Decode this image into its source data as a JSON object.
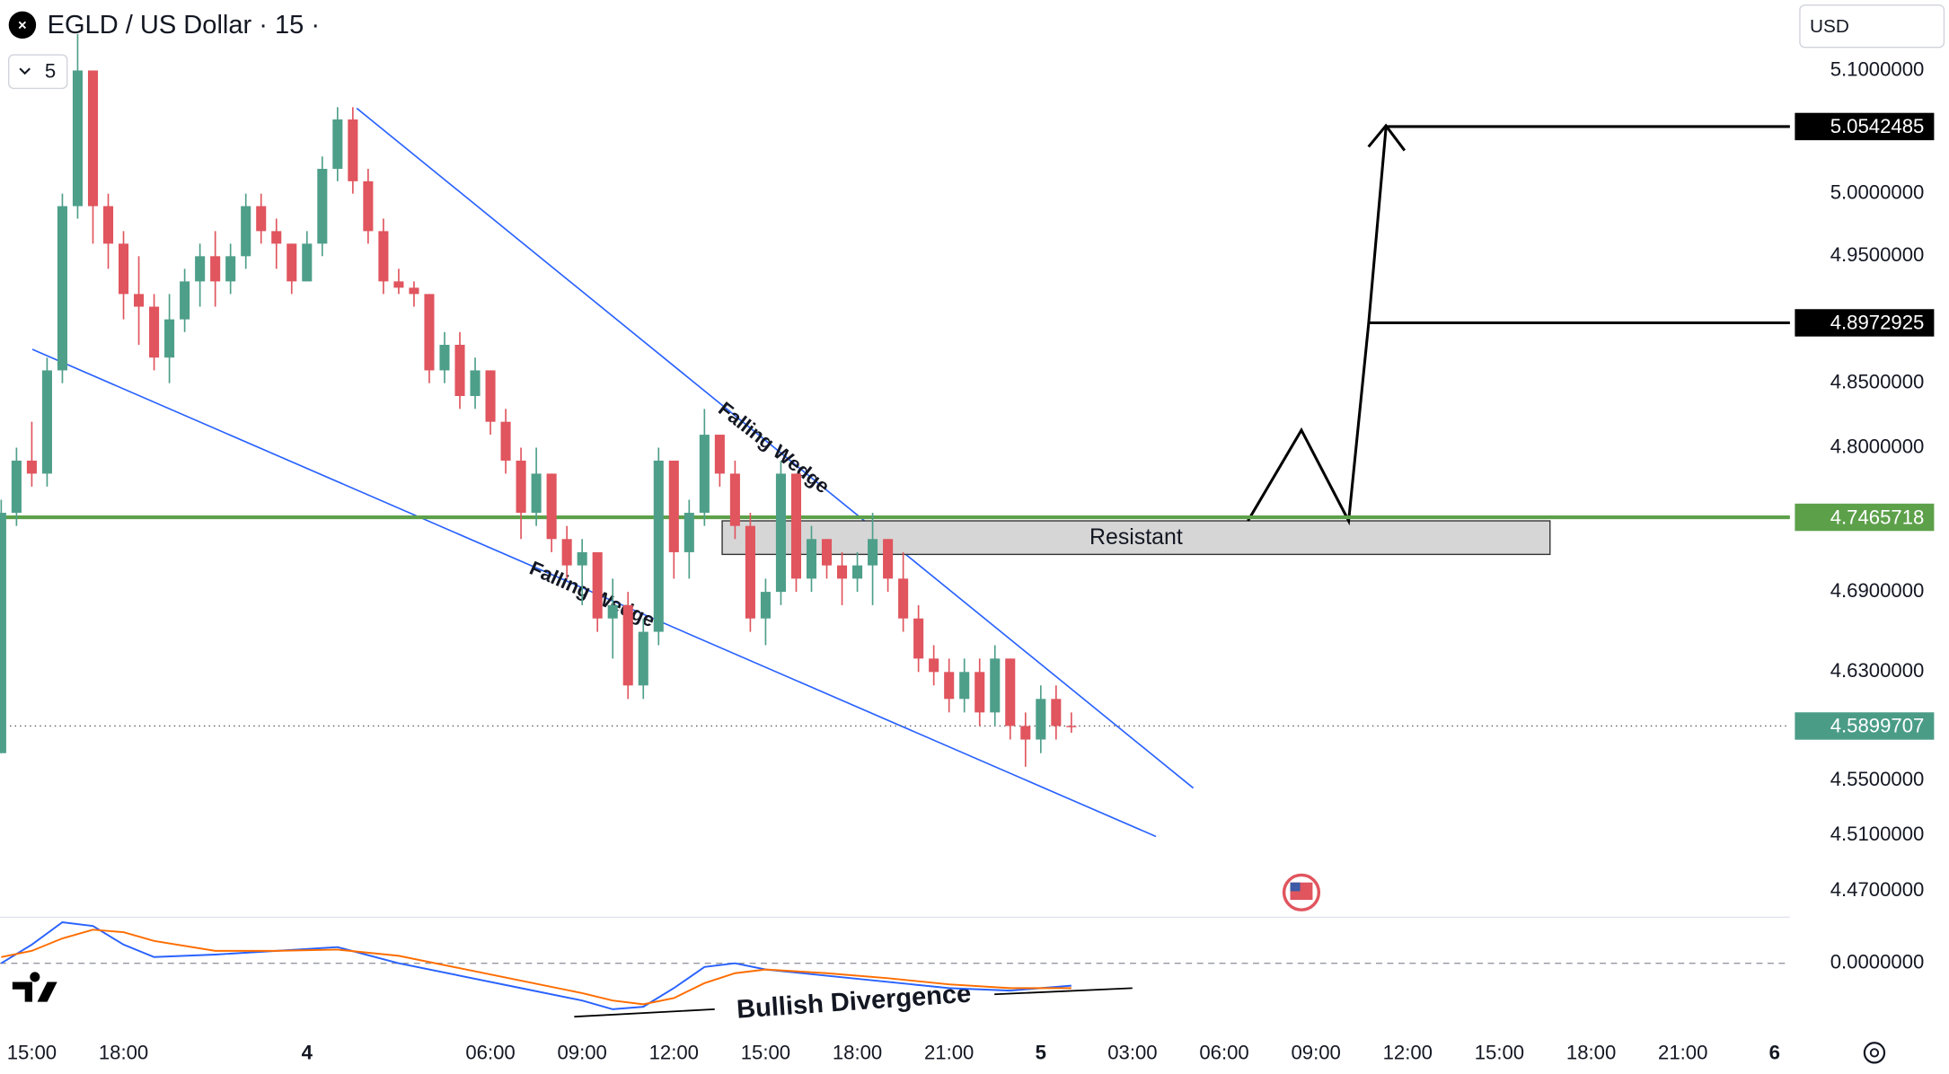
{
  "chart_data": {
    "type": "candlestick",
    "title": "EGLD / US Dollar · 15 ·",
    "interval": "5",
    "currency": "USD",
    "log_scale": true,
    "up_color": "#4e9f8a",
    "down_color": "#e0555e",
    "ylim": [
      4.451,
      5.158
    ],
    "yticks": [
      {
        "value": 5.1,
        "label": "5.1000000"
      },
      {
        "value": 5.0,
        "label": "5.0000000"
      },
      {
        "value": 4.95,
        "label": "4.9500000"
      },
      {
        "value": 4.85,
        "label": "4.8500000"
      },
      {
        "value": 4.8,
        "label": "4.8000000"
      },
      {
        "value": 4.69,
        "label": "4.6900000"
      },
      {
        "value": 4.63,
        "label": "4.6300000"
      },
      {
        "value": 4.55,
        "label": "4.5500000"
      },
      {
        "value": 4.51,
        "label": "4.5100000"
      },
      {
        "value": 4.47,
        "label": "4.4700000"
      }
    ],
    "xlim": [
      -1.04,
      57.5
    ],
    "xticks": [
      {
        "value": 0,
        "label": "15:00"
      },
      {
        "value": 3,
        "label": "18:00"
      },
      {
        "value": 9,
        "label": "4"
      },
      {
        "value": 15,
        "label": "06:00"
      },
      {
        "value": 18,
        "label": "09:00"
      },
      {
        "value": 21,
        "label": "12:00"
      },
      {
        "value": 24,
        "label": "15:00"
      },
      {
        "value": 27,
        "label": "18:00"
      },
      {
        "value": 30,
        "label": "21:00"
      },
      {
        "value": 33,
        "label": "5"
      },
      {
        "value": 36,
        "label": "03:00"
      },
      {
        "value": 39,
        "label": "06:00"
      },
      {
        "value": 42,
        "label": "09:00"
      },
      {
        "value": 45,
        "label": "12:00"
      },
      {
        "value": 48,
        "label": "15:00"
      },
      {
        "value": 51,
        "label": "18:00"
      },
      {
        "value": 54,
        "label": "21:00"
      },
      {
        "value": 57,
        "label": "6"
      }
    ],
    "candles": [
      [
        -1,
        4.57,
        4.76,
        4.57,
        4.75
      ],
      [
        -0.5,
        4.75,
        4.8,
        4.74,
        4.79
      ],
      [
        0,
        4.79,
        4.82,
        4.77,
        4.78
      ],
      [
        0.5,
        4.78,
        4.87,
        4.77,
        4.86
      ],
      [
        1,
        4.86,
        5.0,
        4.85,
        4.99
      ],
      [
        1.5,
        4.99,
        5.13,
        4.98,
        5.1
      ],
      [
        2,
        5.1,
        5.1,
        4.96,
        4.99
      ],
      [
        2.5,
        4.99,
        5.0,
        4.94,
        4.96
      ],
      [
        3,
        4.96,
        4.97,
        4.9,
        4.92
      ],
      [
        3.5,
        4.92,
        4.95,
        4.88,
        4.91
      ],
      [
        4,
        4.91,
        4.92,
        4.86,
        4.87
      ],
      [
        4.5,
        4.87,
        4.92,
        4.85,
        4.9
      ],
      [
        5,
        4.9,
        4.94,
        4.89,
        4.93
      ],
      [
        5.5,
        4.93,
        4.96,
        4.91,
        4.95
      ],
      [
        6,
        4.95,
        4.97,
        4.91,
        4.93
      ],
      [
        6.5,
        4.93,
        4.96,
        4.92,
        4.95
      ],
      [
        7,
        4.95,
        5.0,
        4.94,
        4.99
      ],
      [
        7.5,
        4.99,
        5.0,
        4.96,
        4.97
      ],
      [
        8,
        4.97,
        4.98,
        4.94,
        4.96
      ],
      [
        8.5,
        4.96,
        4.96,
        4.92,
        4.93
      ],
      [
        9,
        4.93,
        4.97,
        4.93,
        4.96
      ],
      [
        9.5,
        4.96,
        5.03,
        4.95,
        5.02
      ],
      [
        10,
        5.02,
        5.07,
        5.01,
        5.06
      ],
      [
        10.5,
        5.06,
        5.07,
        5.0,
        5.01
      ],
      [
        11,
        5.01,
        5.02,
        4.96,
        4.97
      ],
      [
        11.5,
        4.97,
        4.98,
        4.92,
        4.93
      ],
      [
        12,
        4.93,
        4.94,
        4.92,
        4.925
      ],
      [
        12.5,
        4.925,
        4.93,
        4.91,
        4.92
      ],
      [
        13,
        4.92,
        4.92,
        4.85,
        4.86
      ],
      [
        13.5,
        4.86,
        4.89,
        4.85,
        4.88
      ],
      [
        14,
        4.88,
        4.89,
        4.83,
        4.84
      ],
      [
        14.5,
        4.84,
        4.87,
        4.83,
        4.86
      ],
      [
        15,
        4.86,
        4.86,
        4.81,
        4.82
      ],
      [
        15.5,
        4.82,
        4.83,
        4.78,
        4.79
      ],
      [
        16,
        4.79,
        4.8,
        4.73,
        4.75
      ],
      [
        16.5,
        4.75,
        4.8,
        4.74,
        4.78
      ],
      [
        17,
        4.78,
        4.78,
        4.72,
        4.73
      ],
      [
        17.5,
        4.73,
        4.74,
        4.7,
        4.71
      ],
      [
        18,
        4.71,
        4.73,
        4.68,
        4.72
      ],
      [
        18.5,
        4.72,
        4.72,
        4.66,
        4.67
      ],
      [
        19,
        4.67,
        4.7,
        4.64,
        4.68
      ],
      [
        19.5,
        4.68,
        4.69,
        4.61,
        4.62
      ],
      [
        20,
        4.62,
        4.67,
        4.61,
        4.66
      ],
      [
        20.5,
        4.66,
        4.8,
        4.65,
        4.79
      ],
      [
        21,
        4.79,
        4.79,
        4.7,
        4.72
      ],
      [
        21.5,
        4.72,
        4.76,
        4.7,
        4.75
      ],
      [
        22,
        4.75,
        4.83,
        4.74,
        4.81
      ],
      [
        22.5,
        4.81,
        4.81,
        4.77,
        4.78
      ],
      [
        23,
        4.78,
        4.79,
        4.73,
        4.74
      ],
      [
        23.5,
        4.74,
        4.75,
        4.66,
        4.67
      ],
      [
        24,
        4.67,
        4.7,
        4.65,
        4.69
      ],
      [
        24.5,
        4.69,
        4.79,
        4.68,
        4.78
      ],
      [
        25,
        4.78,
        4.78,
        4.69,
        4.7
      ],
      [
        25.5,
        4.7,
        4.74,
        4.69,
        4.73
      ],
      [
        26,
        4.73,
        4.73,
        4.7,
        4.71
      ],
      [
        26.5,
        4.71,
        4.72,
        4.68,
        4.7
      ],
      [
        27,
        4.7,
        4.72,
        4.69,
        4.71
      ],
      [
        27.5,
        4.71,
        4.75,
        4.68,
        4.73
      ],
      [
        28,
        4.73,
        4.73,
        4.69,
        4.7
      ],
      [
        28.5,
        4.7,
        4.72,
        4.66,
        4.67
      ],
      [
        29,
        4.67,
        4.68,
        4.63,
        4.64
      ],
      [
        29.5,
        4.64,
        4.65,
        4.62,
        4.63
      ],
      [
        30,
        4.63,
        4.64,
        4.6,
        4.61
      ],
      [
        30.5,
        4.61,
        4.64,
        4.6,
        4.63
      ],
      [
        31,
        4.63,
        4.64,
        4.59,
        4.6
      ],
      [
        31.5,
        4.6,
        4.65,
        4.59,
        4.64
      ],
      [
        32,
        4.64,
        4.64,
        4.58,
        4.59
      ],
      [
        32.5,
        4.59,
        4.6,
        4.56,
        4.58
      ],
      [
        33,
        4.58,
        4.62,
        4.57,
        4.61
      ],
      [
        33.5,
        4.61,
        4.62,
        4.58,
        4.59
      ],
      [
        34,
        4.59,
        4.6,
        4.585,
        4.5899707
      ]
    ],
    "levels": [
      {
        "value": 5.0542485,
        "color": "#000000"
      },
      {
        "value": 4.8972925,
        "color": "#000000"
      },
      {
        "value": 4.7465718,
        "color": "#5da04a"
      },
      {
        "value": 4.5899707,
        "color": "#4a9c87"
      }
    ],
    "annotations": [
      "Falling Wedge",
      "Falling Wedge",
      "Resistant",
      "Bullish Divergence"
    ],
    "indicator": {
      "ylim": [
        -0.045,
        0.037
      ],
      "yticks": [
        {
          "value": 0,
          "label": "0.0000000"
        }
      ],
      "x": [
        -1,
        0,
        1,
        2,
        3,
        4,
        6,
        8,
        10,
        12,
        14,
        16,
        18,
        19,
        20,
        21,
        22,
        23,
        24,
        26,
        28,
        30,
        32,
        34
      ],
      "series": [
        {
          "color": "#2962ff",
          "values": [
            0,
            0.015,
            0.033,
            0.03,
            0.015,
            0.005,
            0.007,
            0.01,
            0.013,
            0,
            -0.01,
            -0.02,
            -0.03,
            -0.037,
            -0.035,
            -0.02,
            -0.003,
            0,
            -0.005,
            -0.01,
            -0.015,
            -0.02,
            -0.022,
            -0.018
          ]
        },
        {
          "color": "#ff6d00",
          "values": [
            0.005,
            0.01,
            0.02,
            0.027,
            0.025,
            0.018,
            0.01,
            0.01,
            0.011,
            0.006,
            -0.004,
            -0.014,
            -0.024,
            -0.03,
            -0.033,
            -0.028,
            -0.016,
            -0.008,
            -0.005,
            -0.008,
            -0.012,
            -0.017,
            -0.02,
            -0.02
          ]
        }
      ]
    }
  }
}
